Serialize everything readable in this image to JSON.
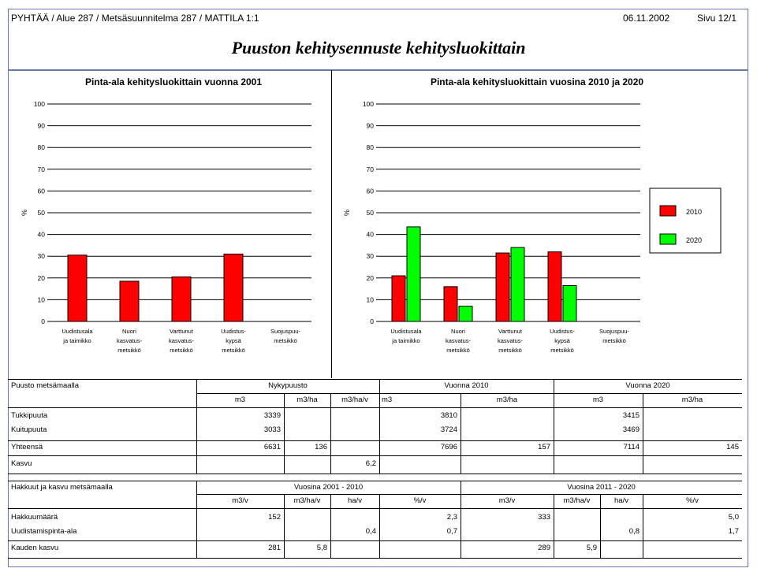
{
  "header": {
    "path": "PYHTÄÄ / Alue 287 / Metsäsuunnitelma 287 / MATTILA 1:1",
    "date": "06.11.2002",
    "page": "Sivu 12/1"
  },
  "title": "Puuston kehitysennuste kehitysluokittain",
  "chart_data": [
    {
      "type": "bar",
      "title": "Pinta-ala kehitysluokittain vuonna 2001",
      "ylabel": "%",
      "ylim": [
        0,
        100
      ],
      "yticks": [
        0,
        10,
        20,
        30,
        40,
        50,
        60,
        70,
        80,
        90,
        100
      ],
      "categories": [
        [
          "Uudistusala",
          "ja taimikko"
        ],
        [
          "Nuori",
          "kasvatus-",
          "metsikkö"
        ],
        [
          "Varttunut",
          "kasvatus-",
          "metsikkö"
        ],
        [
          "Uudistus-",
          "kypsä",
          "metsikkö"
        ],
        [
          "Suojuspuu-",
          "metsikkö"
        ]
      ],
      "series": [
        {
          "values": [
            30.5,
            18.5,
            20.5,
            31,
            0
          ],
          "color": "#ff0000"
        }
      ]
    },
    {
      "type": "bar",
      "title": "Pinta-ala kehitysluokittain vuosina 2010 ja 2020",
      "ylabel": "%",
      "ylim": [
        0,
        100
      ],
      "yticks": [
        0,
        10,
        20,
        30,
        40,
        50,
        60,
        70,
        80,
        90,
        100
      ],
      "categories": [
        [
          "Uudistusala",
          "ja taimikko"
        ],
        [
          "Nuori",
          "kasvatus-",
          "metsikkö"
        ],
        [
          "Varttunut",
          "kasvatus-",
          "metsikkö"
        ],
        [
          "Uudistus-",
          "kypsä",
          "metsikkö"
        ],
        [
          "Suojuspuu-",
          "metsikkö"
        ]
      ],
      "series": [
        {
          "name": "2010",
          "values": [
            21,
            16,
            31.5,
            32,
            0
          ],
          "color": "#ff0000"
        },
        {
          "name": "2020",
          "values": [
            43.5,
            7,
            34,
            16.5,
            0
          ],
          "color": "#00ff00"
        }
      ],
      "legend": "right"
    }
  ],
  "table1": {
    "title": "Puusto metsämaalla",
    "groups": [
      "Nykypuusto",
      "Vuonna 2010",
      "Vuonna 2020"
    ],
    "units": [
      "m3",
      "m3/ha",
      "m3/ha/v",
      "m3",
      "m3/ha",
      "m3",
      "m3/ha"
    ],
    "rows": [
      {
        "label": "Tukkipuuta",
        "vals": [
          "3339",
          "",
          "",
          "3810",
          "",
          "3415",
          ""
        ]
      },
      {
        "label": "Kuitupuuta",
        "vals": [
          "3033",
          "",
          "",
          "3724",
          "",
          "3469",
          ""
        ]
      },
      {
        "label": "Yhteensä",
        "vals": [
          "6631",
          "136",
          "",
          "7696",
          "157",
          "7114",
          "145"
        ]
      },
      {
        "label": "Kasvu",
        "vals": [
          "",
          "",
          "6,2",
          "",
          "",
          "",
          ""
        ]
      }
    ]
  },
  "table2": {
    "title": "Hakkuut ja kasvu metsämaalla",
    "groups": [
      "Vuosina 2001 - 2010",
      "Vuosina 2011 - 2020"
    ],
    "units": [
      "m3/v",
      "m3/ha/v",
      "ha/v",
      "%/v",
      "m3/v",
      "m3/ha/v",
      "ha/v",
      "%/v"
    ],
    "rows": [
      {
        "label": "Hakkuumäärä",
        "vals": [
          "152",
          "",
          "",
          "2,3",
          "333",
          "",
          "",
          "5,0"
        ]
      },
      {
        "label": "Uudistamispinta-ala",
        "vals": [
          "",
          "",
          "0,4",
          "0,7",
          "",
          "",
          "0,8",
          "1,7"
        ]
      },
      {
        "label": "Kauden kasvu",
        "vals": [
          "281",
          "5,8",
          "",
          "",
          "289",
          "5,9",
          "",
          ""
        ]
      }
    ]
  }
}
